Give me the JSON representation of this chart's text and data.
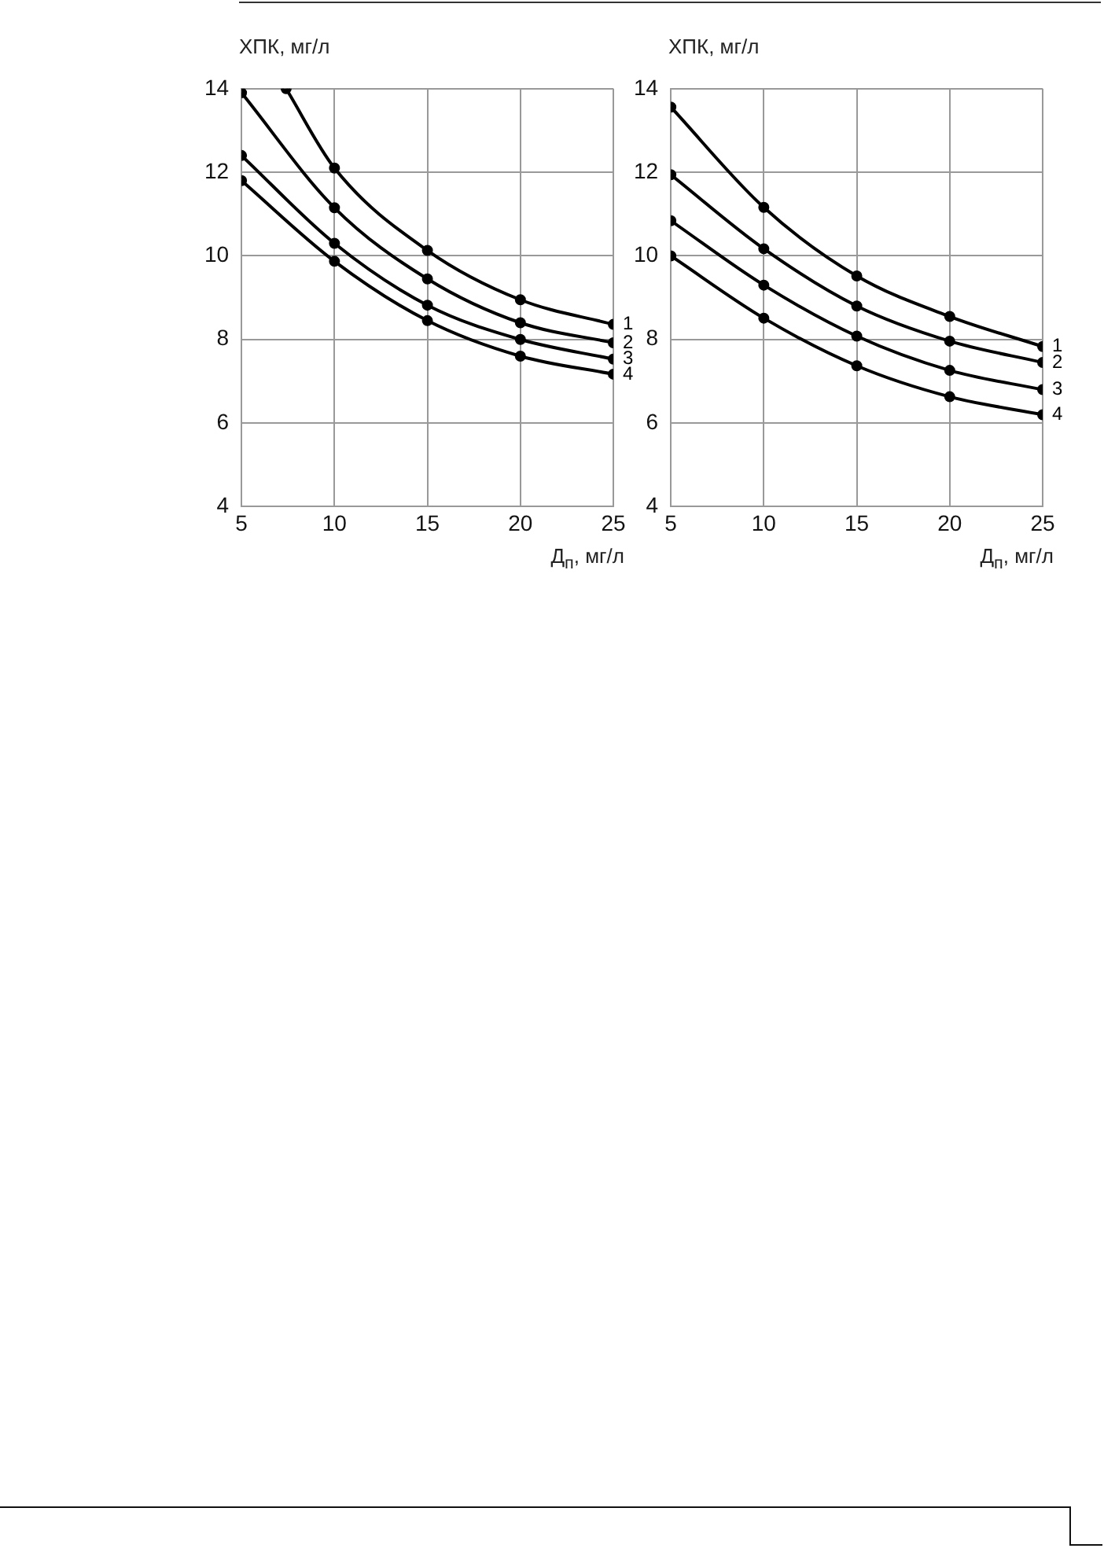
{
  "chart_data": [
    {
      "type": "line",
      "xlabel": "Д$_{п}$, мг/л",
      "ylabel": "ХПК, мг/л",
      "x": [
        5,
        10,
        15,
        20,
        25
      ],
      "xlim": [
        5,
        25
      ],
      "xticks": [
        5,
        10,
        15,
        20,
        25
      ],
      "ylim": [
        4,
        14
      ],
      "yticks": [
        4,
        6,
        8,
        10,
        12,
        14
      ],
      "grid": true,
      "legend": false,
      "marker": "circle",
      "line_style": "solid",
      "series": [
        {
          "name": "1",
          "color": "#000000",
          "x": [
            7.4,
            10,
            15,
            20,
            25
          ],
          "values": [
            14.0,
            12.1,
            10.13,
            8.95,
            8.36
          ]
        },
        {
          "name": "2",
          "color": "#000000",
          "values": [
            13.9,
            11.15,
            9.45,
            8.4,
            7.92
          ]
        },
        {
          "name": "3",
          "color": "#000000",
          "values": [
            12.4,
            10.3,
            8.82,
            8.0,
            7.53
          ]
        },
        {
          "name": "4",
          "color": "#000000",
          "values": [
            11.8,
            9.87,
            8.45,
            7.6,
            7.17
          ]
        }
      ]
    },
    {
      "type": "line",
      "xlabel": "Д$_{п}$, мг/л",
      "ylabel": "ХПК, мг/л",
      "x": [
        5,
        10,
        15,
        20,
        25
      ],
      "xlim": [
        5,
        25
      ],
      "xticks": [
        5,
        10,
        15,
        20,
        25
      ],
      "ylim": [
        4,
        14
      ],
      "yticks": [
        4,
        6,
        8,
        10,
        12,
        14
      ],
      "grid": true,
      "legend": false,
      "marker": "circle",
      "line_style": "solid",
      "series": [
        {
          "name": "1",
          "color": "#000000",
          "values": [
            13.56,
            11.16,
            9.52,
            8.55,
            7.83
          ]
        },
        {
          "name": "2",
          "color": "#000000",
          "values": [
            11.94,
            10.17,
            8.8,
            7.96,
            7.45
          ]
        },
        {
          "name": "3",
          "color": "#000000",
          "values": [
            10.84,
            9.3,
            8.08,
            7.26,
            6.8
          ]
        },
        {
          "name": "4",
          "color": "#000000",
          "values": [
            10.0,
            8.51,
            7.37,
            6.63,
            6.2
          ]
        }
      ]
    }
  ]
}
